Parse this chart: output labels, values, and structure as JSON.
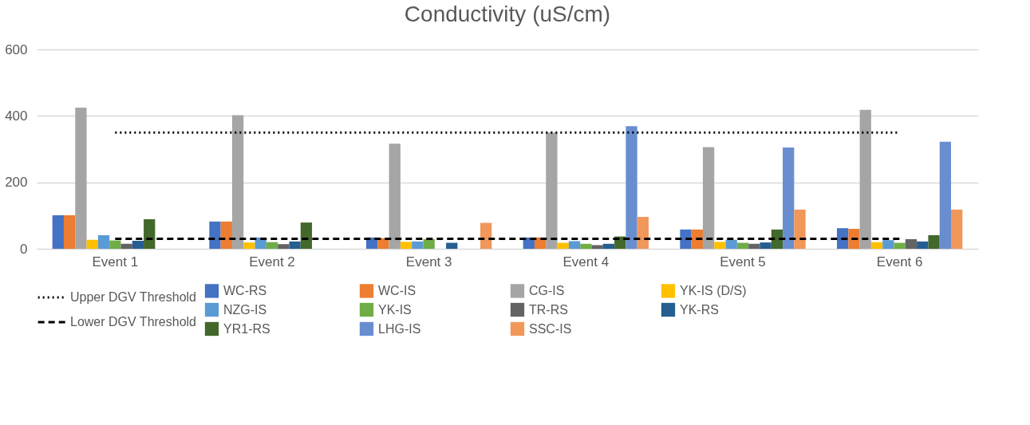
{
  "chart_data": {
    "type": "bar",
    "title": "Conductivity (uS/cm)",
    "categories": [
      "Event 1",
      "Event 2",
      "Event 3",
      "Event 4",
      "Event 5",
      "Event 6"
    ],
    "ylim": [
      0,
      600
    ],
    "yticks": [
      0,
      200,
      400,
      600
    ],
    "grid": "y",
    "legend": "bottom",
    "series": [
      {
        "name": "WC-RS",
        "color": "#4472c4",
        "values": [
          101,
          82,
          34,
          34,
          58,
          62
        ]
      },
      {
        "name": "WC-IS",
        "color": "#ed7d31",
        "values": [
          101,
          82,
          32,
          34,
          58,
          60
        ]
      },
      {
        "name": "CG-IS",
        "color": "#a5a5a5",
        "values": [
          425,
          402,
          316,
          350,
          306,
          418
        ]
      },
      {
        "name": "YK-IS (D/S)",
        "color": "#ffc000",
        "values": [
          27,
          19,
          21,
          18,
          21,
          20
        ]
      },
      {
        "name": "NZG-IS",
        "color": "#5b9bd5",
        "values": [
          41,
          34,
          22,
          23,
          27,
          26
        ]
      },
      {
        "name": "YK-IS",
        "color": "#70ad47",
        "values": [
          25,
          20,
          29,
          15,
          18,
          18
        ]
      },
      {
        "name": "TR-RS",
        "color": "#636363",
        "values": [
          15,
          14,
          null,
          11,
          15,
          29
        ]
      },
      {
        "name": "YK-RS",
        "color": "#255e91",
        "values": [
          24,
          22,
          18,
          15,
          19,
          22
        ]
      },
      {
        "name": "YR1-RS",
        "color": "#43682b",
        "values": [
          89,
          79,
          null,
          37,
          58,
          41
        ]
      },
      {
        "name": "LHG-IS",
        "color": "#698ed0",
        "values": [
          null,
          null,
          null,
          369,
          305,
          322
        ]
      },
      {
        "name": "SSC-IS",
        "color": "#f1975a",
        "values": [
          null,
          null,
          78,
          96,
          118,
          118
        ]
      }
    ],
    "ref_lines": [
      {
        "axis": "y",
        "value": 350,
        "label": "Upper DGV Threshold",
        "color": "#000000",
        "line_style": "dotted"
      },
      {
        "axis": "y",
        "value": 30,
        "label": "Lower DGV Threshold",
        "color": "#000000",
        "line_style": "dashed"
      }
    ]
  }
}
